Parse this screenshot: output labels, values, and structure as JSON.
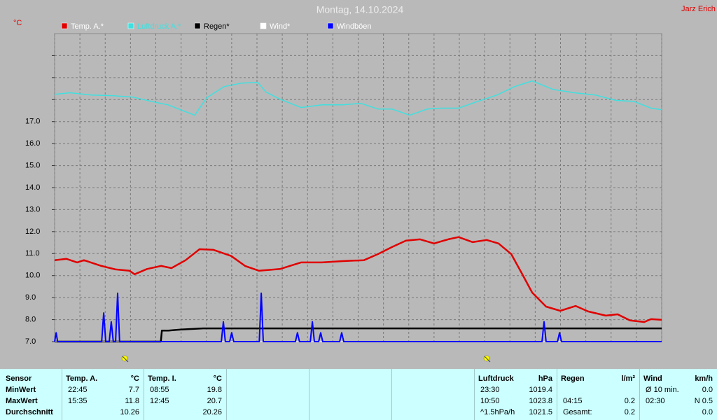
{
  "chart_data": {
    "type": "line",
    "title": "Montag, 14.10.2024",
    "unit_label": "°C",
    "author": "Jarz Erich",
    "xlim": [
      0,
      24
    ],
    "xticks": [
      {
        "value": 0
      },
      {
        "value": 1
      },
      {
        "value": 2
      },
      {
        "value": 3
      },
      {
        "value": 4
      },
      {
        "value": 5
      },
      {
        "value": 6
      },
      {
        "value": 7
      },
      {
        "value": 8
      },
      {
        "value": 9
      },
      {
        "value": 10
      },
      {
        "value": 11
      },
      {
        "value": 12
      },
      {
        "value": 13
      },
      {
        "value": 14
      },
      {
        "value": 15
      },
      {
        "value": 16
      },
      {
        "value": 17
      },
      {
        "value": 18
      },
      {
        "value": 19
      },
      {
        "value": 20
      },
      {
        "value": 21
      },
      {
        "value": 22
      },
      {
        "value": 23
      },
      {
        "value": 24
      }
    ],
    "ylim": [
      7,
      21
    ],
    "yticks": [
      {
        "value": 7,
        "label": "7.0"
      },
      {
        "value": 8,
        "label": "8.0"
      },
      {
        "value": 9,
        "label": "9.0"
      },
      {
        "value": 10,
        "label": "10.0"
      },
      {
        "value": 11,
        "label": "11.0"
      },
      {
        "value": 12,
        "label": "12.0"
      },
      {
        "value": 13,
        "label": "13.0"
      },
      {
        "value": 14,
        "label": "14.0"
      },
      {
        "value": 15,
        "label": "15.0"
      },
      {
        "value": 16,
        "label": "16.0"
      },
      {
        "value": 17,
        "label": "17.0"
      },
      {
        "value": 18
      },
      {
        "value": 19
      },
      {
        "value": 20
      }
    ],
    "grid": true,
    "series": [
      {
        "name": "Temp. A.*",
        "color": "#e00000",
        "legend_text_color": "#ffffff",
        "width": 2.5,
        "x": [
          0,
          0.47,
          0.89,
          1.16,
          1.85,
          2.41,
          2.96,
          3.16,
          3.65,
          4.21,
          4.62,
          5.18,
          5.73,
          6.28,
          6.98,
          7.53,
          8.08,
          8.91,
          9.74,
          10.57,
          11.4,
          12.23,
          12.79,
          13.34,
          13.89,
          14.45,
          15.0,
          15.56,
          15.97,
          16.53,
          17.08,
          17.55,
          18.05,
          18.46,
          18.88,
          19.43,
          19.99,
          20.6,
          21.09,
          21.79,
          22.26,
          22.75,
          23.31,
          23.58,
          24
        ],
        "values": [
          10.7,
          10.76,
          10.6,
          10.7,
          10.44,
          10.28,
          10.22,
          10.06,
          10.3,
          10.44,
          10.34,
          10.7,
          11.2,
          11.17,
          10.89,
          10.44,
          10.22,
          10.3,
          10.6,
          10.6,
          10.66,
          10.7,
          10.98,
          11.3,
          11.59,
          11.65,
          11.46,
          11.65,
          11.75,
          11.52,
          11.62,
          11.46,
          10.98,
          10.12,
          9.23,
          8.59,
          8.4,
          8.62,
          8.37,
          8.18,
          8.24,
          7.96,
          7.89,
          8.02,
          7.99
        ]
      },
      {
        "name": "Luftdruck A.*",
        "color": "#40e0e0",
        "legend_text_color": "#40e0e0",
        "width": 1.5,
        "x": [
          0,
          0.61,
          1.44,
          2.27,
          3.1,
          3.93,
          4.48,
          5.04,
          5.54,
          6.01,
          6.7,
          7.39,
          8.03,
          8.36,
          8.91,
          9.74,
          10.57,
          11.4,
          12.1,
          12.79,
          13.34,
          14.04,
          14.73,
          15.28,
          15.97,
          16.66,
          17.49,
          18.18,
          18.88,
          19.71,
          20.54,
          21.37,
          22.2,
          22.89,
          23.58,
          24
        ],
        "values": [
          18.24,
          18.31,
          18.21,
          18.18,
          18.11,
          17.89,
          17.76,
          17.51,
          17.29,
          18.08,
          18.59,
          18.75,
          18.78,
          18.34,
          18.02,
          17.64,
          17.76,
          17.76,
          17.83,
          17.57,
          17.57,
          17.29,
          17.57,
          17.61,
          17.61,
          17.89,
          18.21,
          18.59,
          18.85,
          18.46,
          18.31,
          18.21,
          17.96,
          17.92,
          17.61,
          17.54
        ]
      },
      {
        "name": "Regen*",
        "color": "#000000",
        "legend_text_color": "#000000",
        "width": 2.5,
        "x": [
          0,
          4.2,
          4.24,
          4.5,
          5.0,
          5.87,
          24
        ],
        "values": [
          7,
          7,
          7.5,
          7.5,
          7.55,
          7.6,
          7.6
        ]
      },
      {
        "name": "Wind*",
        "color": "#ffffff",
        "legend_text_color": "#ffffff",
        "width": 1,
        "x": [
          0,
          24
        ],
        "values": [
          7,
          7
        ]
      },
      {
        "name": "Windböen",
        "color": "#0000ff",
        "legend_text_color": "#ffffff",
        "width": 2,
        "x": [
          0,
          0.06,
          0.12,
          1.86,
          1.94,
          2.02,
          2.16,
          2.24,
          2.32,
          2.41,
          2.49,
          2.57,
          6.59,
          6.67,
          6.75,
          6.92,
          7.0,
          7.08,
          8.09,
          8.17,
          8.25,
          9.52,
          9.6,
          9.68,
          10.11,
          10.19,
          10.27,
          10.44,
          10.52,
          10.6,
          11.27,
          11.35,
          11.43,
          19.27,
          19.35,
          19.43,
          19.88,
          19.96,
          20.04,
          24
        ],
        "values": [
          7,
          7.4,
          7,
          7,
          8.3,
          7,
          7,
          7.9,
          7,
          7,
          9.2,
          7,
          7,
          7.9,
          7,
          7,
          7.4,
          7,
          7,
          9.2,
          7,
          7,
          7.4,
          7,
          7,
          7.9,
          7,
          7,
          7.4,
          7,
          7,
          7.4,
          7,
          7,
          7.9,
          7,
          7,
          7.4,
          7,
          7
        ]
      }
    ]
  },
  "table": {
    "row_labels": [
      "Sensor",
      "MinWert",
      "MaxWert",
      "Durchschnitt"
    ],
    "columns": [
      {
        "header": "Temp. A.",
        "unit": "°C",
        "cells": [
          [
            "22:45",
            "7.7"
          ],
          [
            "15:35",
            "11.8"
          ],
          [
            null,
            "10.26"
          ]
        ]
      },
      {
        "header": "Temp. I.",
        "unit": "°C",
        "cells": [
          [
            "08:55",
            "19.8"
          ],
          [
            "12:45",
            "20.7"
          ],
          [
            null,
            "20.26"
          ]
        ]
      },
      {
        "header": "Luftdruck",
        "unit": "hPa",
        "cells": [
          [
            "23:30",
            "1019.4"
          ],
          [
            "10:50",
            "1023.8"
          ],
          [
            "^1.5hPa/h",
            "1021.5"
          ]
        ]
      },
      {
        "header": "Regen",
        "unit": "l/m²",
        "cells": [
          [
            null,
            null
          ],
          [
            "04:15",
            "0.2"
          ],
          [
            "Gesamt:",
            "0.2"
          ]
        ]
      },
      {
        "header": "Wind",
        "unit": "km/h",
        "cells": [
          [
            "Ø 10 min.",
            "0.0"
          ],
          [
            "02:30",
            "N 0.5"
          ],
          [
            null,
            "0.0"
          ]
        ]
      }
    ]
  }
}
